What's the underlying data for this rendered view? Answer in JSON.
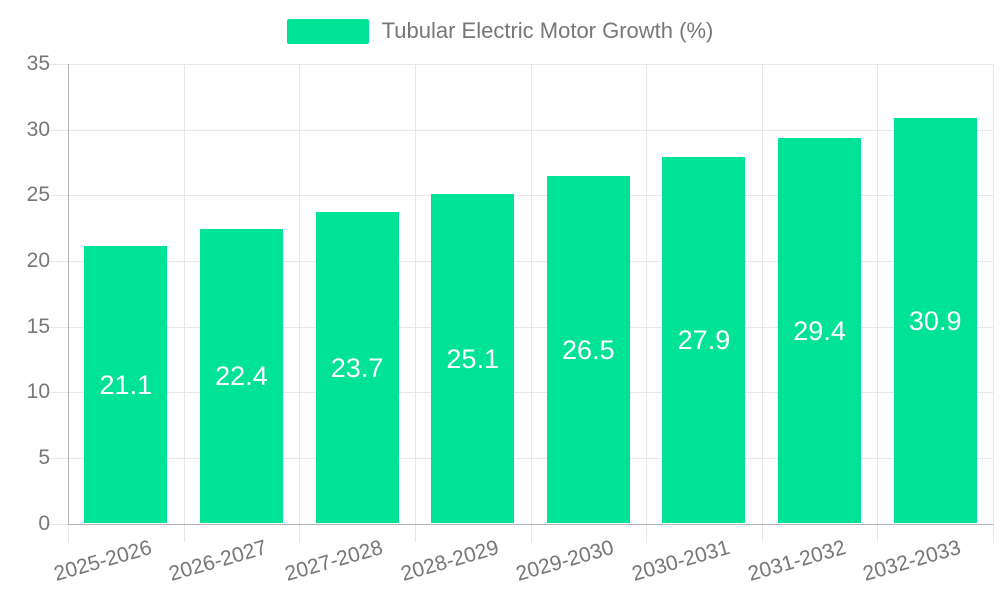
{
  "legend": {
    "series_label": "Tubular Electric Motor Growth (%)"
  },
  "chart_data": {
    "type": "bar",
    "title": "",
    "xlabel": "",
    "ylabel": "",
    "categories": [
      "2025-2026",
      "2026-2027",
      "2027-2028",
      "2028-2029",
      "2029-2030",
      "2030-2031",
      "2031-2032",
      "2032-2033"
    ],
    "series": [
      {
        "name": "Tubular Electric Motor Growth (%)",
        "values": [
          21.1,
          22.4,
          23.7,
          25.1,
          26.5,
          27.9,
          29.4,
          30.9
        ]
      }
    ],
    "data_labels": [
      "21.1",
      "22.4",
      "23.7",
      "25.1",
      "26.5",
      "27.9",
      "29.4",
      "30.9"
    ],
    "ylim": [
      0,
      35
    ],
    "yticks": [
      0,
      5,
      10,
      15,
      20,
      25,
      30,
      35
    ],
    "grid": true,
    "legend_position": "top",
    "colors": {
      "bar": "#00E396",
      "data_label_text": "#ffffff",
      "axis_text": "#777777",
      "gridline": "#e7e7e7",
      "axis_line": "#b4b4b4"
    }
  }
}
